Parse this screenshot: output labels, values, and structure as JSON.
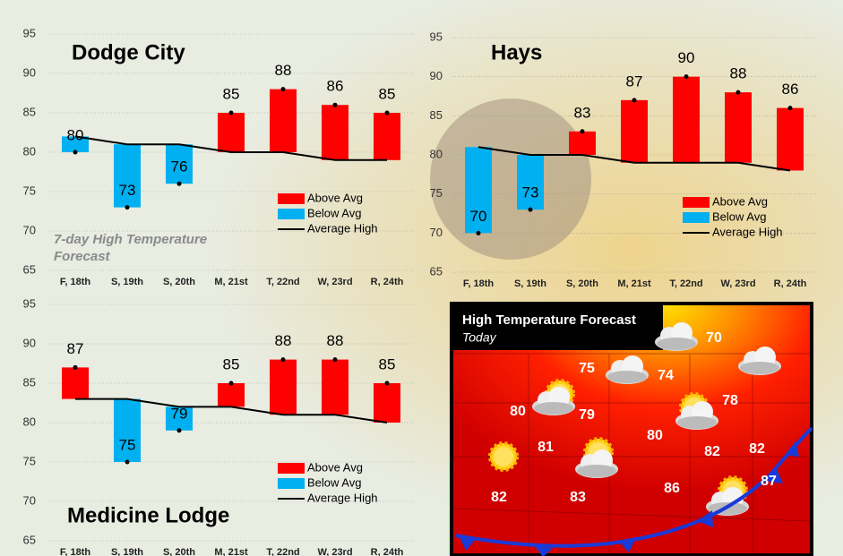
{
  "chart_data": [
    {
      "type": "floating-bar",
      "title": "Dodge City",
      "annotation": "7-day High Temperature Forecast",
      "categories": [
        "F, 18th",
        "S, 19th",
        "S, 20th",
        "M, 21st",
        "T, 22nd",
        "W, 23rd",
        "R, 24th"
      ],
      "values": [
        80,
        73,
        76,
        85,
        88,
        86,
        85
      ],
      "average": [
        82,
        81,
        81,
        80,
        80,
        79,
        79
      ],
      "legend": [
        {
          "name": "Above Avg",
          "color": "#ff0000"
        },
        {
          "name": "Below Avg",
          "color": "#00b0f0"
        },
        {
          "name": "Average High",
          "color": "#000000"
        }
      ],
      "ylim": [
        65,
        95
      ],
      "yticks": [
        65,
        70,
        75,
        80,
        85,
        90,
        95
      ],
      "grid": true
    },
    {
      "type": "floating-bar",
      "title": "Hays",
      "categories": [
        "F, 18th",
        "S, 19th",
        "S, 20th",
        "M, 21st",
        "T, 22nd",
        "W, 23rd",
        "R, 24th"
      ],
      "values": [
        70,
        73,
        83,
        87,
        90,
        88,
        86
      ],
      "average": [
        81,
        80,
        80,
        79,
        79,
        79,
        78
      ],
      "legend": [
        {
          "name": "Above Avg",
          "color": "#ff0000"
        },
        {
          "name": "Below Avg",
          "color": "#00b0f0"
        },
        {
          "name": "Average High",
          "color": "#000000"
        }
      ],
      "ylim": [
        65,
        95
      ],
      "yticks": [
        65,
        70,
        75,
        80,
        85,
        90,
        95
      ],
      "grid": true
    },
    {
      "type": "floating-bar",
      "title": "Medicine Lodge",
      "categories": [
        "F, 18th",
        "S, 19th",
        "S, 20th",
        "M, 21st",
        "T, 22nd",
        "W, 23rd",
        "R, 24th"
      ],
      "values": [
        87,
        75,
        79,
        85,
        88,
        88,
        85
      ],
      "average": [
        83,
        83,
        82,
        82,
        81,
        81,
        80
      ],
      "legend": [
        {
          "name": "Above Avg",
          "color": "#ff0000"
        },
        {
          "name": "Below Avg",
          "color": "#00b0f0"
        },
        {
          "name": "Average High",
          "color": "#000000"
        }
      ],
      "ylim": [
        65,
        95
      ],
      "yticks": [
        65,
        70,
        75,
        80,
        85,
        90,
        95
      ],
      "grid": true
    }
  ],
  "map": {
    "title": "High Temperature Forecast",
    "subtitle": "Today",
    "temps": [
      "70",
      "75",
      "74",
      "78",
      "80",
      "79",
      "80",
      "82",
      "82",
      "81",
      "86",
      "87",
      "82",
      "83"
    ]
  }
}
